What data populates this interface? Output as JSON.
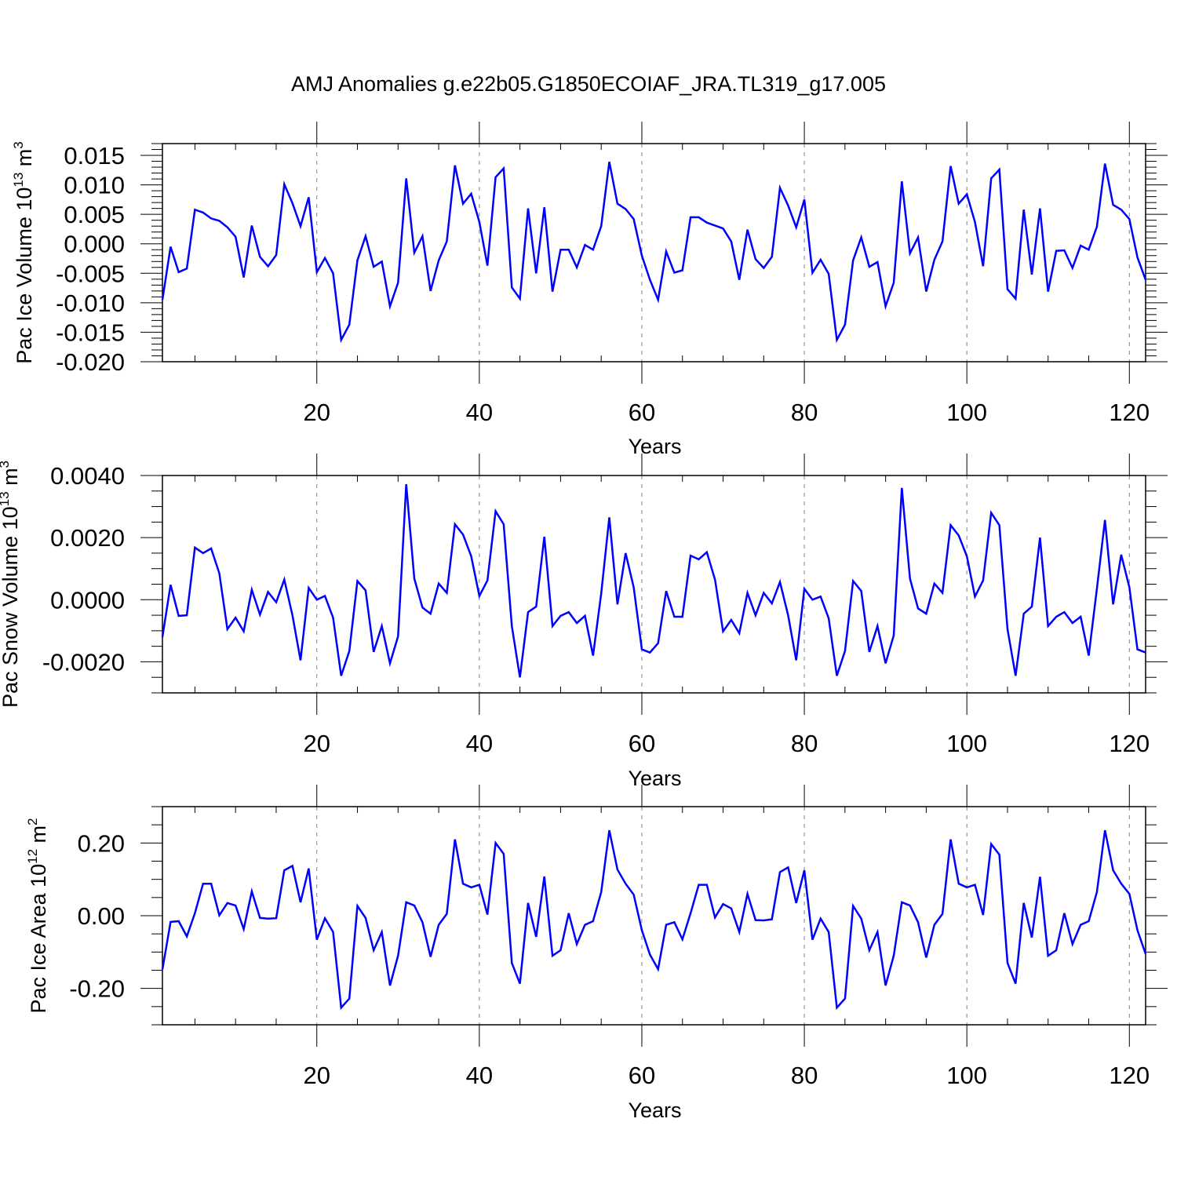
{
  "title": "AMJ Anomalies g.e22b05.G1850ECOIAF_JRA.TL319_g17.005",
  "colors": {
    "line": "#0000ff",
    "axes": "#000000",
    "grid": "#808080",
    "background": "#ffffff"
  },
  "chart_data": [
    {
      "type": "line",
      "title": "",
      "xlabel": "Years",
      "ylabel": "Pac Ice Volume 10",
      "ylabel_exp": "13",
      "ylabel_unit": " m",
      "ylabel_unit_exp": "3",
      "xlim": [
        1,
        122
      ],
      "ylim": [
        -0.02,
        0.017
      ],
      "xticks": [
        20,
        40,
        60,
        80,
        100,
        120
      ],
      "yticks": [
        -0.02,
        -0.015,
        -0.01,
        -0.005,
        0.0,
        0.005,
        0.01,
        0.015
      ],
      "ytick_labels": [
        "-0.020",
        "-0.015",
        "-0.010",
        "-0.005",
        "0.000",
        "0.005",
        "0.010",
        "0.015"
      ],
      "grid": "vertical-dashed",
      "series": [
        {
          "x": [
            1,
            2,
            3,
            4,
            5,
            6,
            7,
            8,
            9,
            10,
            11,
            12,
            13,
            14,
            15,
            16,
            17,
            18,
            19,
            20,
            21,
            22,
            23,
            24,
            25,
            26,
            27,
            28,
            29,
            30,
            31,
            32,
            33,
            34,
            35,
            36,
            37,
            38,
            39,
            40,
            41,
            42,
            43,
            44,
            45,
            46,
            47,
            48,
            49,
            50,
            51,
            52,
            53,
            54,
            55,
            56,
            57,
            58,
            59,
            60,
            61,
            62,
            63,
            64,
            65,
            66,
            67,
            68,
            69,
            70,
            71,
            72,
            73,
            74,
            75,
            76,
            77,
            78,
            79,
            80,
            81,
            82,
            83,
            84,
            85,
            86,
            87,
            88,
            89,
            90,
            91,
            92,
            93,
            94,
            95,
            96,
            97,
            98,
            99,
            100,
            101,
            102,
            103,
            104,
            105,
            106,
            107,
            108,
            109,
            110,
            111,
            112,
            113,
            114,
            115,
            116,
            117,
            118,
            119,
            120,
            121,
            122
          ],
          "values": [
            -0.0095,
            -0.0005,
            -0.0048,
            -0.0042,
            0.0058,
            0.0053,
            0.0043,
            0.0039,
            0.0028,
            0.0012,
            -0.0057,
            0.0031,
            -0.0022,
            -0.0038,
            -0.0019,
            0.0101,
            0.0069,
            0.003,
            0.0079,
            -0.0048,
            -0.0024,
            -0.005,
            -0.0163,
            -0.0137,
            -0.0028,
            0.0013,
            -0.0039,
            -0.003,
            -0.0106,
            -0.0066,
            0.0111,
            -0.0015,
            0.0013,
            -0.008,
            -0.0028,
            0.0004,
            0.0133,
            0.0068,
            0.0085,
            0.0037,
            -0.0037,
            0.0113,
            0.0128,
            -0.0074,
            -0.0093,
            0.006,
            -0.005,
            0.0062,
            -0.0081,
            -0.001,
            -0.001,
            -0.004,
            -0.0002,
            -0.001,
            0.003,
            0.0139,
            0.0068,
            0.0059,
            0.0042,
            -0.002,
            -0.0061,
            -0.0095,
            -0.0013,
            -0.0049,
            -0.0045,
            0.0045,
            0.0045,
            0.0036,
            0.0031,
            0.0026,
            0.0004,
            -0.0061,
            0.0024,
            -0.0026,
            -0.0041,
            -0.0022,
            0.0095,
            0.0065,
            0.0028,
            0.0075,
            -0.0049,
            -0.0027,
            -0.0051,
            -0.0163,
            -0.0137,
            -0.0028,
            0.0011,
            -0.0039,
            -0.0031,
            -0.0106,
            -0.0066,
            0.0106,
            -0.0016,
            0.0011,
            -0.0081,
            -0.0027,
            0.0004,
            0.0132,
            0.0068,
            0.0084,
            0.0037,
            -0.0038,
            0.0111,
            0.0126,
            -0.0077,
            -0.0093,
            0.0058,
            -0.0052,
            0.006,
            -0.0081,
            -0.0012,
            -0.0011,
            -0.0041,
            -0.0003,
            -0.001,
            0.0029,
            0.0136,
            0.0066,
            0.0058,
            0.0042,
            -0.0023,
            -0.0061
          ]
        }
      ]
    },
    {
      "type": "line",
      "title": "",
      "xlabel": "Years",
      "ylabel": "Pac Snow Volume 10",
      "ylabel_exp": "13",
      "ylabel_unit": " m",
      "ylabel_unit_exp": "3",
      "xlim": [
        1,
        122
      ],
      "ylim": [
        -0.003,
        0.004
      ],
      "xticks": [
        20,
        40,
        60,
        80,
        100,
        120
      ],
      "yticks": [
        -0.002,
        0.0,
        0.002,
        0.004
      ],
      "ytick_labels": [
        "-0.0020",
        "0.0000",
        "0.0020",
        "0.0040"
      ],
      "grid": "vertical-dashed",
      "series": [
        {
          "x": [
            1,
            2,
            3,
            4,
            5,
            6,
            7,
            8,
            9,
            10,
            11,
            12,
            13,
            14,
            15,
            16,
            17,
            18,
            19,
            20,
            21,
            22,
            23,
            24,
            25,
            26,
            27,
            28,
            29,
            30,
            31,
            32,
            33,
            34,
            35,
            36,
            37,
            38,
            39,
            40,
            41,
            42,
            43,
            44,
            45,
            46,
            47,
            48,
            49,
            50,
            51,
            52,
            53,
            54,
            55,
            56,
            57,
            58,
            59,
            60,
            61,
            62,
            63,
            64,
            65,
            66,
            67,
            68,
            69,
            70,
            71,
            72,
            73,
            74,
            75,
            76,
            77,
            78,
            79,
            80,
            81,
            82,
            83,
            84,
            85,
            86,
            87,
            88,
            89,
            90,
            91,
            92,
            93,
            94,
            95,
            96,
            97,
            98,
            99,
            100,
            101,
            102,
            103,
            104,
            105,
            106,
            107,
            108,
            109,
            110,
            111,
            112,
            113,
            114,
            115,
            116,
            117,
            118,
            119,
            120,
            121,
            122
          ],
          "values": [
            -0.0012,
            0.00048,
            -0.00052,
            -0.0005,
            0.00168,
            0.0015,
            0.00165,
            0.00085,
            -0.00095,
            -0.00058,
            -0.00102,
            0.00032,
            -0.00048,
            0.00025,
            -8e-05,
            0.00065,
            -0.0005,
            -0.00195,
            0.00038,
            0.0,
            0.00012,
            -0.00058,
            -0.00245,
            -0.00165,
            0.0006,
            0.0003,
            -0.00168,
            -0.00085,
            -0.00205,
            -0.00118,
            0.00372,
            0.00068,
            -0.00025,
            -0.00045,
            0.00052,
            0.00022,
            0.00243,
            0.0021,
            0.0014,
            0.00012,
            0.00062,
            0.00285,
            0.00243,
            -0.00085,
            -0.0025,
            -0.0004,
            -0.00022,
            0.00203,
            -0.00085,
            -0.00052,
            -0.0004,
            -0.00075,
            -0.00052,
            -0.0018,
            0.0002,
            0.00265,
            -0.00015,
            0.0015,
            0.0004,
            -0.0016,
            -0.0017,
            -0.0014,
            0.00028,
            -0.00055,
            -0.00055,
            0.00142,
            0.0013,
            0.00153,
            0.00065,
            -0.00102,
            -0.00065,
            -0.00108,
            0.00022,
            -0.0005,
            0.00022,
            -0.00012,
            0.00057,
            -0.0005,
            -0.00195,
            0.00035,
            0.0,
            0.0001,
            -0.0006,
            -0.00245,
            -0.00165,
            0.0006,
            0.00028,
            -0.00168,
            -0.00085,
            -0.00205,
            -0.00115,
            0.0036,
            0.00068,
            -0.00028,
            -0.00045,
            0.00052,
            0.00022,
            0.0024,
            0.00207,
            0.0014,
            0.0001,
            0.00062,
            0.0028,
            0.0024,
            -0.00095,
            -0.00245,
            -0.00045,
            -0.00022,
            0.002,
            -0.00085,
            -0.00055,
            -0.0004,
            -0.00075,
            -0.00055,
            -0.0018,
            0.00035,
            0.00257,
            -0.00015,
            0.00145,
            0.0004,
            -0.0016,
            -0.0017
          ]
        }
      ]
    },
    {
      "type": "line",
      "title": "",
      "xlabel": "Years",
      "ylabel": "Pac Ice Area 10",
      "ylabel_exp": "12",
      "ylabel_unit": " m",
      "ylabel_unit_exp": "2",
      "xlim": [
        1,
        122
      ],
      "ylim": [
        -0.3,
        0.3
      ],
      "xticks": [
        20,
        40,
        60,
        80,
        100,
        120
      ],
      "yticks": [
        -0.2,
        0.0,
        0.2
      ],
      "ytick_labels": [
        "-0.20",
        "0.00",
        "0.20"
      ],
      "grid": "vertical-dashed",
      "series": [
        {
          "x": [
            1,
            2,
            3,
            4,
            5,
            6,
            7,
            8,
            9,
            10,
            11,
            12,
            13,
            14,
            15,
            16,
            17,
            18,
            19,
            20,
            21,
            22,
            23,
            24,
            25,
            26,
            27,
            28,
            29,
            30,
            31,
            32,
            33,
            34,
            35,
            36,
            37,
            38,
            39,
            40,
            41,
            42,
            43,
            44,
            45,
            46,
            47,
            48,
            49,
            50,
            51,
            52,
            53,
            54,
            55,
            56,
            57,
            58,
            59,
            60,
            61,
            62,
            63,
            64,
            65,
            66,
            67,
            68,
            69,
            70,
            71,
            72,
            73,
            74,
            75,
            76,
            77,
            78,
            79,
            80,
            81,
            82,
            83,
            84,
            85,
            86,
            87,
            88,
            89,
            90,
            91,
            92,
            93,
            94,
            95,
            96,
            97,
            98,
            99,
            100,
            101,
            102,
            103,
            104,
            105,
            106,
            107,
            108,
            109,
            110,
            111,
            112,
            113,
            114,
            115,
            116,
            117,
            118,
            119,
            120,
            121,
            122
          ],
          "values": [
            -0.148,
            -0.017,
            -0.015,
            -0.057,
            0.007,
            0.088,
            0.088,
            0.001,
            0.035,
            0.028,
            -0.037,
            0.067,
            -0.006,
            -0.008,
            -0.007,
            0.125,
            0.137,
            0.037,
            0.13,
            -0.066,
            -0.007,
            -0.045,
            -0.253,
            -0.228,
            0.027,
            -0.006,
            -0.095,
            -0.045,
            -0.192,
            -0.11,
            0.037,
            0.028,
            -0.018,
            -0.113,
            -0.025,
            0.005,
            0.21,
            0.088,
            0.078,
            0.085,
            0.003,
            0.2,
            0.17,
            -0.13,
            -0.187,
            0.035,
            -0.058,
            0.108,
            -0.11,
            -0.095,
            0.007,
            -0.078,
            -0.025,
            -0.015,
            0.065,
            0.235,
            0.127,
            0.088,
            0.058,
            -0.04,
            -0.107,
            -0.147,
            -0.025,
            -0.018,
            -0.065,
            0.007,
            0.085,
            0.085,
            -0.005,
            0.032,
            0.02,
            -0.045,
            0.06,
            -0.012,
            -0.013,
            -0.01,
            0.12,
            0.133,
            0.035,
            0.125,
            -0.066,
            -0.008,
            -0.045,
            -0.253,
            -0.228,
            0.027,
            -0.008,
            -0.095,
            -0.045,
            -0.192,
            -0.11,
            0.037,
            0.028,
            -0.018,
            -0.115,
            -0.025,
            0.005,
            0.21,
            0.088,
            0.078,
            0.085,
            0.002,
            0.197,
            0.168,
            -0.13,
            -0.187,
            0.035,
            -0.06,
            0.107,
            -0.11,
            -0.095,
            0.007,
            -0.078,
            -0.025,
            -0.015,
            0.065,
            0.235,
            0.125,
            0.088,
            0.06,
            -0.04,
            -0.105
          ]
        }
      ]
    }
  ]
}
